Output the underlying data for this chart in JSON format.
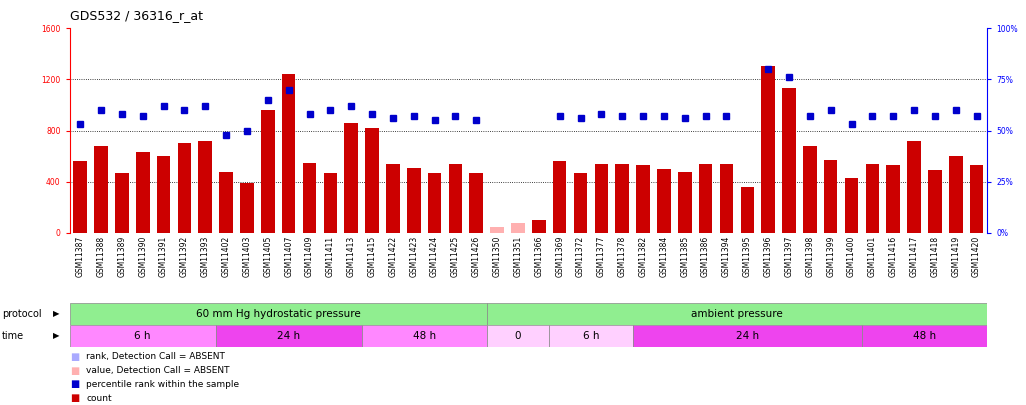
{
  "title": "GDS532 / 36316_r_at",
  "samples": [
    "GSM11387",
    "GSM11388",
    "GSM11389",
    "GSM11390",
    "GSM11391",
    "GSM11392",
    "GSM11393",
    "GSM11402",
    "GSM11403",
    "GSM11405",
    "GSM11407",
    "GSM11409",
    "GSM11411",
    "GSM11413",
    "GSM11415",
    "GSM11422",
    "GSM11423",
    "GSM11424",
    "GSM11425",
    "GSM11426",
    "GSM11350",
    "GSM11351",
    "GSM11366",
    "GSM11369",
    "GSM11372",
    "GSM11377",
    "GSM11378",
    "GSM11382",
    "GSM11384",
    "GSM11385",
    "GSM11386",
    "GSM11394",
    "GSM11395",
    "GSM11396",
    "GSM11397",
    "GSM11398",
    "GSM11399",
    "GSM11400",
    "GSM11401",
    "GSM11416",
    "GSM11417",
    "GSM11418",
    "GSM11419",
    "GSM11420"
  ],
  "counts": [
    560,
    680,
    470,
    630,
    600,
    700,
    720,
    480,
    390,
    960,
    1240,
    550,
    470,
    860,
    820,
    540,
    510,
    470,
    540,
    470,
    50,
    80,
    100,
    560,
    470,
    540,
    540,
    530,
    500,
    480,
    540,
    540,
    360,
    1300,
    1130,
    680,
    570,
    430,
    540,
    530,
    720,
    490,
    600,
    530
  ],
  "ranks": [
    53,
    60,
    58,
    57,
    62,
    60,
    62,
    48,
    50,
    65,
    70,
    58,
    60,
    62,
    58,
    56,
    57,
    55,
    57,
    55,
    null,
    null,
    null,
    57,
    56,
    58,
    57,
    57,
    57,
    56,
    57,
    57,
    null,
    80,
    76,
    57,
    60,
    53,
    57,
    57,
    60,
    57,
    60,
    57
  ],
  "count_absent": [
    false,
    false,
    false,
    false,
    false,
    false,
    false,
    false,
    false,
    false,
    false,
    false,
    false,
    false,
    false,
    false,
    false,
    false,
    false,
    false,
    true,
    true,
    false,
    false,
    false,
    false,
    false,
    false,
    false,
    false,
    false,
    false,
    false,
    false,
    false,
    false,
    false,
    false,
    false,
    false,
    false,
    false,
    false,
    false
  ],
  "rank_absent": [
    false,
    false,
    false,
    false,
    false,
    false,
    false,
    false,
    false,
    false,
    false,
    false,
    false,
    false,
    false,
    false,
    false,
    false,
    false,
    false,
    true,
    true,
    false,
    false,
    false,
    false,
    false,
    false,
    false,
    false,
    false,
    false,
    true,
    false,
    false,
    false,
    false,
    false,
    false,
    false,
    false,
    false,
    false,
    false
  ],
  "protocol_groups": [
    {
      "label": "60 mm Hg hydrostatic pressure",
      "start": 0,
      "end": 19,
      "color": "#90EE90"
    },
    {
      "label": "ambient pressure",
      "start": 20,
      "end": 43,
      "color": "#90EE90"
    }
  ],
  "time_groups": [
    {
      "label": "6 h",
      "start": 0,
      "end": 6,
      "color": "#FF88FF"
    },
    {
      "label": "24 h",
      "start": 7,
      "end": 13,
      "color": "#EE44EE"
    },
    {
      "label": "48 h",
      "start": 14,
      "end": 19,
      "color": "#FF88FF"
    },
    {
      "label": "0",
      "start": 20,
      "end": 22,
      "color": "#FFD0FF"
    },
    {
      "label": "6 h",
      "start": 23,
      "end": 26,
      "color": "#FFD0FF"
    },
    {
      "label": "24 h",
      "start": 27,
      "end": 37,
      "color": "#EE44EE"
    },
    {
      "label": "48 h",
      "start": 38,
      "end": 43,
      "color": "#EE44EE"
    }
  ],
  "ylim_left": [
    0,
    1600
  ],
  "ylim_right": [
    0,
    100
  ],
  "yticks_left": [
    0,
    400,
    800,
    1200,
    1600
  ],
  "yticks_right": [
    0,
    25,
    50,
    75,
    100
  ],
  "bar_color": "#CC0000",
  "bar_absent_color": "#FFB0B0",
  "rank_color": "#0000CC",
  "rank_absent_color": "#AAAAFF",
  "bg_color": "#FFFFFF",
  "title_fontsize": 9,
  "tick_fontsize": 5.5,
  "label_fontsize": 7.5,
  "row_label_fontsize": 7,
  "legend_fontsize": 7
}
